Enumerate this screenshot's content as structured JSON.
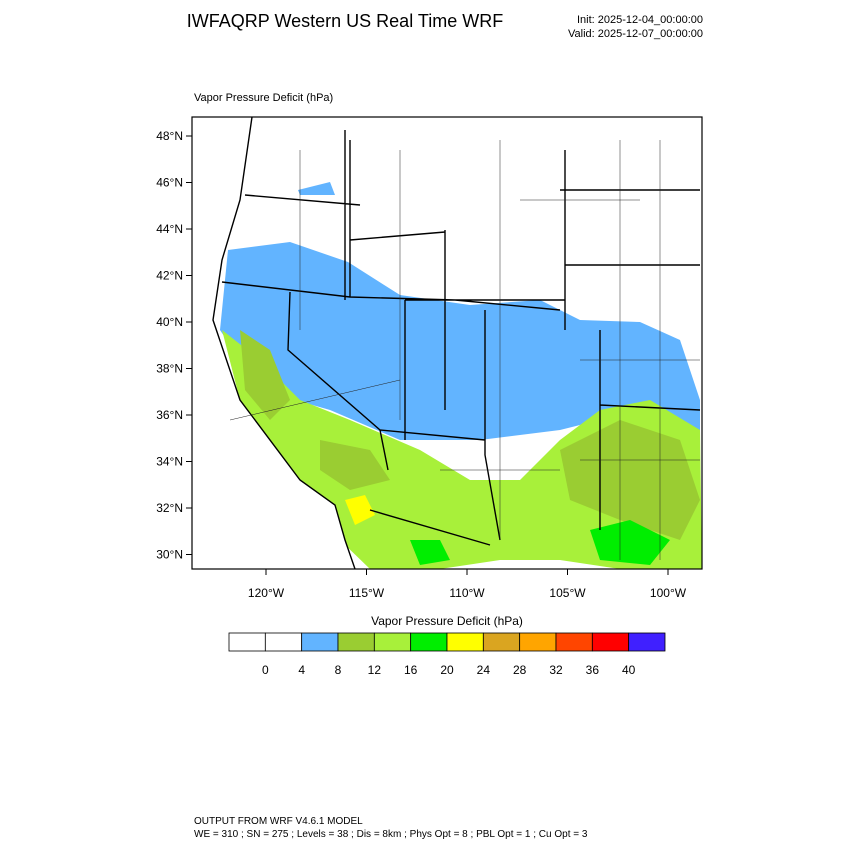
{
  "header": {
    "title": "IWFAQRP Western US Real Time WRF",
    "init": "Init: 2025-12-04_00:00:00",
    "valid": "Valid: 2025-12-07_00:00:00"
  },
  "map": {
    "title": "Vapor Pressure Deficit   (hPa)",
    "lat_labels": [
      "48°N",
      "46°N",
      "44°N",
      "42°N",
      "40°N",
      "38°N",
      "36°N",
      "34°N",
      "32°N",
      "30°N"
    ],
    "lon_labels": [
      "120°W",
      "115°W",
      "110°W",
      "105°W",
      "100°W"
    ]
  },
  "colorbar": {
    "title": "Vapor Pressure Deficit  (hPa)",
    "colors": [
      "#ffffff",
      "#ffffff",
      "#62b4ff",
      "#9acd32",
      "#a8f03a",
      "#00ee00",
      "#ffff00",
      "#daa520",
      "#ffa500",
      "#ff4500",
      "#ff0000",
      "#4020ff"
    ],
    "labels": [
      0,
      4,
      8,
      12,
      16,
      20,
      24,
      28,
      32,
      36,
      40
    ]
  },
  "footer": {
    "line1": "OUTPUT FROM WRF V4.6.1 MODEL",
    "line2": "WE = 310 ; SN = 275 ; Levels = 38 ; Dis = 8km ; Phys Opt = 8 ; PBL Opt = 1 ; Cu Opt = 3"
  }
}
